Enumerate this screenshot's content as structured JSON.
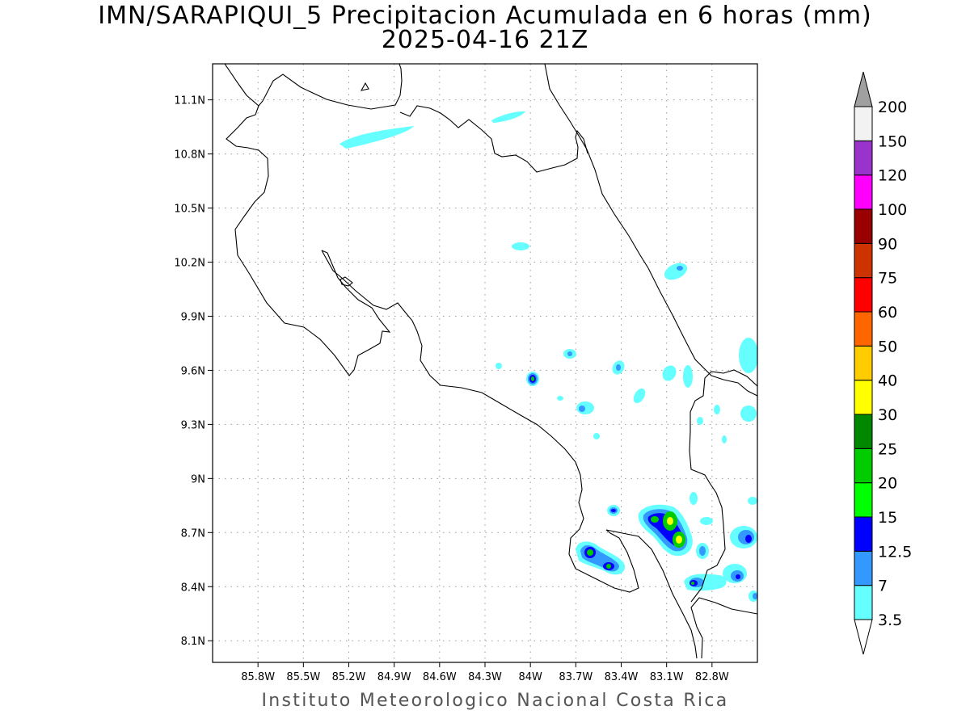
{
  "title": {
    "line1": "IMN/SARAPIQUI_5 Precipitacion Acumulada en 6 horas (mm)",
    "line2": "2025-04-16 21Z"
  },
  "credit": "Instituto Meteorologico Nacional Costa Rica",
  "map": {
    "lon_range": [
      -86.1,
      -82.5
    ],
    "lat_range": [
      7.98,
      11.3
    ],
    "lon_ticks": [
      {
        "value": -85.8,
        "label": "85.8W"
      },
      {
        "value": -85.5,
        "label": "85.5W"
      },
      {
        "value": -85.2,
        "label": "85.2W"
      },
      {
        "value": -84.9,
        "label": "84.9W"
      },
      {
        "value": -84.6,
        "label": "84.6W"
      },
      {
        "value": -84.3,
        "label": "84.3W"
      },
      {
        "value": -84.0,
        "label": "84W"
      },
      {
        "value": -83.7,
        "label": "83.7W"
      },
      {
        "value": -83.4,
        "label": "83.4W"
      },
      {
        "value": -83.1,
        "label": "83.1W"
      },
      {
        "value": -82.8,
        "label": "82.8W"
      }
    ],
    "lat_ticks": [
      {
        "value": 8.1,
        "label": "8.1N"
      },
      {
        "value": 8.4,
        "label": "8.4N"
      },
      {
        "value": 8.7,
        "label": "8.7N"
      },
      {
        "value": 9.0,
        "label": "9N"
      },
      {
        "value": 9.3,
        "label": "9.3N"
      },
      {
        "value": 9.6,
        "label": "9.6N"
      },
      {
        "value": 9.9,
        "label": "9.9N"
      },
      {
        "value": 10.2,
        "label": "10.2N"
      },
      {
        "value": 10.5,
        "label": "10.5N"
      },
      {
        "value": 10.8,
        "label": "10.8N"
      },
      {
        "value": 11.1,
        "label": "11.1N"
      }
    ],
    "grid": "dotted"
  },
  "colorbar": {
    "levels": [
      "3.5",
      "7",
      "12.5",
      "15",
      "20",
      "25",
      "30",
      "40",
      "50",
      "60",
      "75",
      "90",
      "100",
      "120",
      "150",
      "200"
    ],
    "colors": [
      "#66ffff",
      "#3399ff",
      "#0000ff",
      "#00ff00",
      "#00cc00",
      "#008800",
      "#ffff00",
      "#ffcc00",
      "#ff6600",
      "#ff0000",
      "#cc3300",
      "#990000",
      "#ff00ff",
      "#9933cc",
      "#f2f2f2"
    ],
    "over_color": "#a0a0a0",
    "under_color": "#ffffff"
  }
}
